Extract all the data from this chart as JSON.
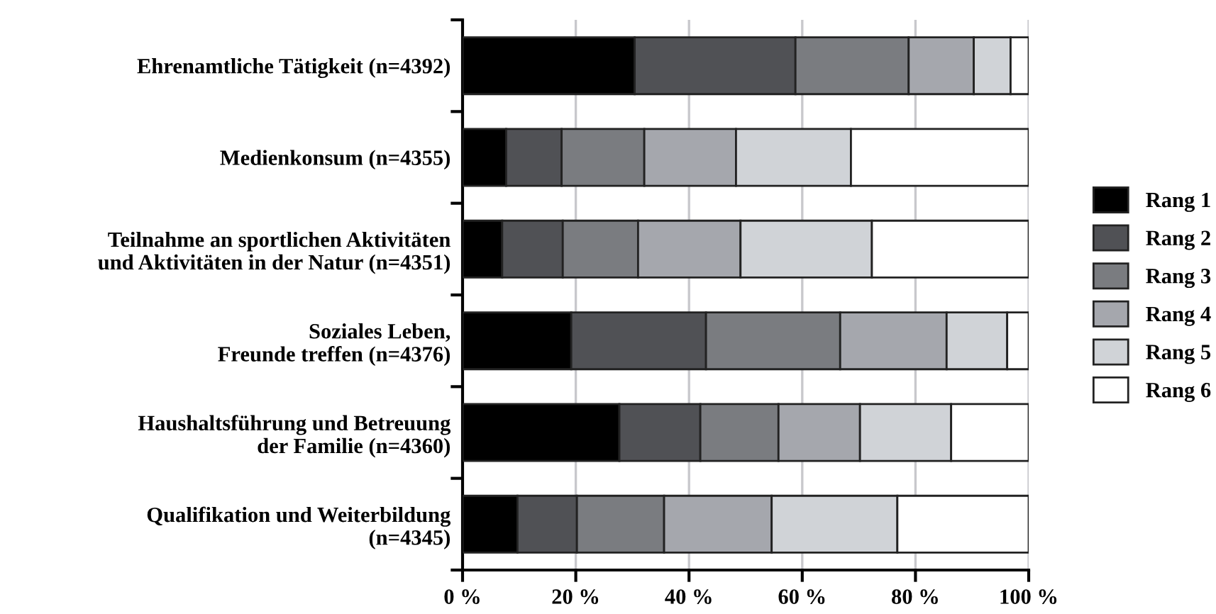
{
  "chart_data": {
    "type": "bar",
    "orientation": "horizontal",
    "stacked": true,
    "grid": "x",
    "legend": "right",
    "categories": [
      "Ehrenamtliche Tätigkeit (n=4392)",
      "Medienkonsum (n=4355)",
      "Teilnahme an sportlichen Aktivitäten\nund Aktivitäten in der Natur (n=4351)",
      "Soziales Leben,\nFreunde treffen (n=4376)",
      "Haushaltsführung und Betreuung\nder Familie (n=4360)",
      "Qualifikation und Weiterbildung\n(n=4345)"
    ],
    "xlim": [
      0,
      100
    ],
    "xticks": [
      {
        "value": 0,
        "label": "0 %"
      },
      {
        "value": 20,
        "label": "20 %"
      },
      {
        "value": 40,
        "label": "40 %"
      },
      {
        "value": 60,
        "label": "60 %"
      },
      {
        "value": 80,
        "label": "80 %"
      },
      {
        "value": 100,
        "label": "100 %"
      }
    ],
    "series": [
      {
        "name": "Rang 1",
        "color": "#000000",
        "values": [
          30.4,
          7.7,
          7.0,
          19.2,
          27.7,
          9.7
        ]
      },
      {
        "name": "Rang 2",
        "color": "#505155",
        "values": [
          28.4,
          9.8,
          10.7,
          23.8,
          14.3,
          10.5
        ]
      },
      {
        "name": "Rang 3",
        "color": "#7a7c80",
        "values": [
          20.0,
          14.6,
          13.3,
          23.7,
          13.8,
          15.4
        ]
      },
      {
        "name": "Rang 4",
        "color": "#a5a7ad",
        "values": [
          11.5,
          16.2,
          18.1,
          18.8,
          14.4,
          19.0
        ]
      },
      {
        "name": "Rang 5",
        "color": "#d0d3d7",
        "values": [
          6.5,
          20.3,
          23.2,
          10.7,
          16.1,
          22.2
        ]
      },
      {
        "name": "Rang 6",
        "color": "#ffffff",
        "values": [
          3.2,
          31.4,
          27.7,
          3.8,
          13.7,
          23.2
        ]
      }
    ]
  }
}
